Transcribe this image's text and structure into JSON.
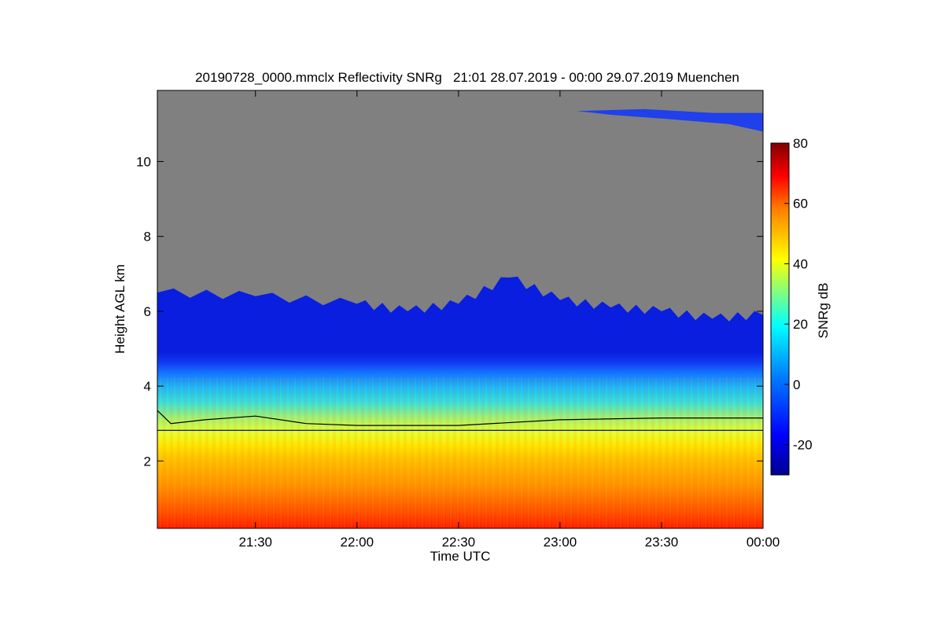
{
  "chart_data": {
    "type": "heatmap",
    "title": "20190728_0000.mmclx Reflectivity SNRg   21:01 28.07.2019 - 00:00 29.07.2019 Muenchen",
    "xlabel": "Time UTC",
    "ylabel": "Height AGL km",
    "x_range": [
      "21:01",
      "00:00"
    ],
    "x_ticks": [
      "21:30",
      "22:00",
      "22:30",
      "23:00",
      "23:30",
      "00:00"
    ],
    "y_range": [
      0.2,
      11.9
    ],
    "y_ticks": [
      2,
      4,
      6,
      8,
      10
    ],
    "colorbar": {
      "label": "SNRg dB",
      "range": [
        -30,
        80
      ],
      "ticks": [
        -20,
        0,
        20,
        40,
        60,
        80
      ]
    },
    "no_signal_color": "#808080",
    "layers_description": {
      "cloud_top_km_by_time": [
        {
          "t": "21:01",
          "h": 6.5
        },
        {
          "t": "21:30",
          "h": 6.4
        },
        {
          "t": "22:00",
          "h": 6.2
        },
        {
          "t": "22:15",
          "h": 6.0
        },
        {
          "t": "22:30",
          "h": 6.2
        },
        {
          "t": "22:45",
          "h": 6.9
        },
        {
          "t": "23:00",
          "h": 6.3
        },
        {
          "t": "23:15",
          "h": 6.1
        },
        {
          "t": "23:30",
          "h": 6.0
        },
        {
          "t": "23:45",
          "h": 5.8
        },
        {
          "t": "00:00",
          "h": 5.9
        }
      ],
      "cirrus_upper_km": [
        11.0,
        11.4
      ]
    },
    "overlay_lines": [
      {
        "name": "",
        "points": [
          {
            "t": "21:01",
            "h": 3.35
          },
          {
            "t": "21:05",
            "h": 3.0
          },
          {
            "t": "21:15",
            "h": 3.1
          },
          {
            "t": "21:30",
            "h": 3.2
          },
          {
            "t": "21:45",
            "h": 3.0
          },
          {
            "t": "22:00",
            "h": 2.95
          },
          {
            "t": "22:30",
            "h": 2.95
          },
          {
            "t": "23:00",
            "h": 3.1
          },
          {
            "t": "23:30",
            "h": 3.15
          },
          {
            "t": "00:00",
            "h": 3.15
          }
        ]
      },
      {
        "name": "",
        "points": [
          {
            "t": "21:01",
            "h": 2.82
          },
          {
            "t": "00:00",
            "h": 2.82
          }
        ]
      }
    ]
  }
}
